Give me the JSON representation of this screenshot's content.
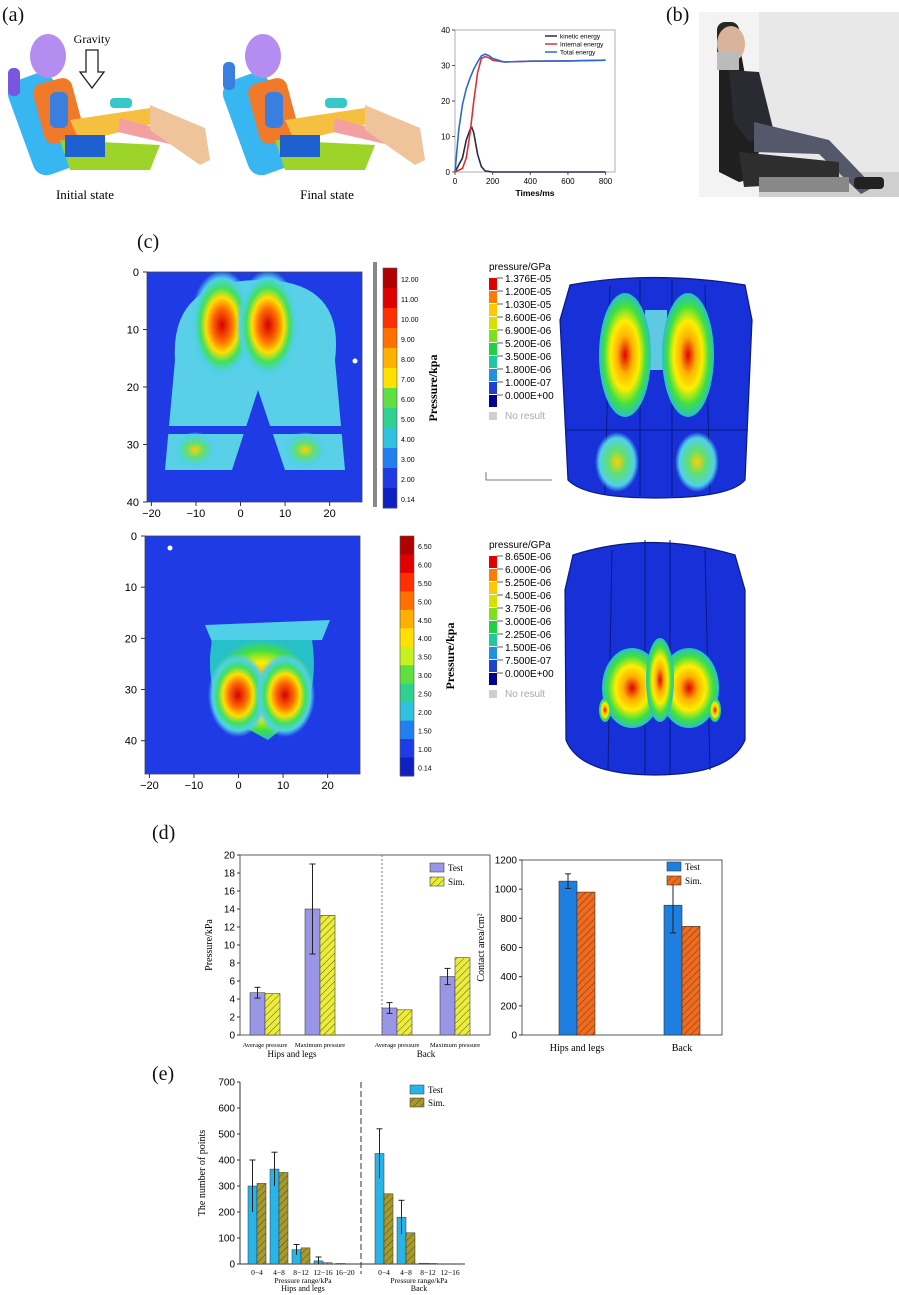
{
  "panels": {
    "a": "(a)",
    "b": "(b)",
    "c": "(c)",
    "d": "(d)",
    "e": "(e)"
  },
  "panel_a": {
    "gravity": "Gravity",
    "initial": "Initial state",
    "final": "Final state"
  },
  "energy_chart": {
    "type": "line",
    "xlabel": "Times/ms",
    "x_ticks": [
      "0",
      "200",
      "400",
      "600",
      "800"
    ],
    "y_ticks": [
      "0",
      "10",
      "20",
      "30",
      "40"
    ],
    "xlim": [
      0,
      850
    ],
    "ylim": [
      0,
      40
    ],
    "legend": [
      "kinetic energy",
      "Internal energy",
      "Total energy"
    ],
    "colors": {
      "kinetic": "#2b2b4a",
      "internal": "#e03030",
      "total": "#2a6bd1"
    },
    "series": [
      {
        "name": "kinetic energy",
        "x": [
          0,
          40,
          60,
          80,
          90,
          100,
          120,
          140,
          160,
          200,
          800
        ],
        "y": [
          0,
          4,
          9,
          12,
          12.5,
          11,
          5,
          1.5,
          0.3,
          0,
          0
        ]
      },
      {
        "name": "Internal energy",
        "x": [
          0,
          40,
          60,
          80,
          100,
          120,
          140,
          160,
          180,
          200,
          260,
          400,
          600,
          800
        ],
        "y": [
          0,
          1,
          4,
          11,
          20,
          28,
          32,
          32.5,
          32.2,
          31.5,
          31,
          31.2,
          31.3,
          31.5
        ]
      },
      {
        "name": "Total energy",
        "x": [
          0,
          20,
          40,
          60,
          80,
          100,
          120,
          140,
          160,
          180,
          200,
          260,
          400,
          600,
          800
        ],
        "y": [
          0,
          12,
          19,
          23.5,
          26.5,
          29,
          31,
          32.7,
          33.2,
          32.8,
          32,
          31,
          31.2,
          31.3,
          31.5
        ]
      }
    ]
  },
  "contour_top": {
    "x_ticks": [
      "−20",
      "−10",
      "0",
      "10",
      "20"
    ],
    "y_ticks": [
      "0",
      "10",
      "20",
      "30",
      "40"
    ],
    "cb_ticks": [
      "12.00",
      "11.00",
      "10.00",
      "9.00",
      "8.00",
      "7.00",
      "6.00",
      "5.00",
      "4.00",
      "3.00",
      "2.00",
      "0.14"
    ],
    "cb_label": "Pressure/kpa"
  },
  "contour_bottom": {
    "x_ticks": [
      "−20",
      "−10",
      "0",
      "10",
      "20"
    ],
    "y_ticks": [
      "0",
      "10",
      "20",
      "30",
      "40"
    ],
    "cb_ticks": [
      "6.50",
      "6.00",
      "5.50",
      "5.00",
      "4.50",
      "4.00",
      "3.50",
      "3.00",
      "2.50",
      "2.00",
      "1.50",
      "1.00",
      "0.14"
    ],
    "cb_label": "Pressure/kpa"
  },
  "sim_top": {
    "title": "pressure/GPa",
    "levels": [
      "1.376E-05",
      "1.200E-05",
      "1.030E-05",
      "8.600E-06",
      "6.900E-06",
      "5.200E-06",
      "3.500E-06",
      "1.800E-06",
      "1.000E-07",
      "0.000E+00"
    ],
    "no_result": "No result"
  },
  "sim_bottom": {
    "title": "pressure/GPa",
    "levels": [
      "8.650E-06",
      "6.000E-06",
      "5.250E-06",
      "4.500E-06",
      "3.750E-06",
      "3.000E-06",
      "2.250E-06",
      "1.500E-06",
      "7.500E-07",
      "0.000E+00"
    ],
    "no_result": "No result"
  },
  "chart_data": [
    {
      "type": "bar",
      "ylabel": "Pressure/kPa",
      "y_ticks": [
        "0",
        "2",
        "4",
        "6",
        "8",
        "10",
        "12",
        "14",
        "16",
        "18",
        "20"
      ],
      "ylim": [
        0,
        20
      ],
      "categories": [
        "Average pressure",
        "Maximum pressure",
        "Average pressure",
        "Maximum pressure"
      ],
      "groups": [
        "Hips and legs",
        "Back"
      ],
      "series": [
        {
          "name": "Test",
          "values": [
            4.7,
            14.0,
            3.0,
            6.5
          ],
          "errors": [
            0.6,
            5.0,
            0.6,
            0.9
          ]
        },
        {
          "name": "Sim.",
          "values": [
            4.6,
            13.3,
            2.8,
            8.6
          ]
        }
      ],
      "colors": {
        "test": "#9a96e6",
        "sim": "#ecec3a"
      }
    },
    {
      "type": "bar",
      "ylabel": "Contact area/cm²",
      "y_ticks": [
        "0",
        "200",
        "400",
        "600",
        "800",
        "1000",
        "1200"
      ],
      "ylim": [
        0,
        1200
      ],
      "categories": [
        "Hips and legs",
        "Back"
      ],
      "series": [
        {
          "name": "Test",
          "values": [
            1055,
            890
          ],
          "errors": [
            50,
            190
          ]
        },
        {
          "name": "Sim.",
          "values": [
            980,
            745
          ]
        }
      ],
      "colors": {
        "test": "#1e7fe0",
        "sim": "#f26a1b"
      }
    },
    {
      "type": "bar",
      "ylabel": "The number of points",
      "y_ticks": [
        "0",
        "100",
        "200",
        "300",
        "400",
        "500",
        "600",
        "700"
      ],
      "ylim": [
        0,
        700
      ],
      "groups": [
        {
          "name": "Hips and legs",
          "xlabel": "Pressure range/kPa",
          "categories": [
            "0−4",
            "4−8",
            "8−12",
            "12−16",
            "16−20"
          ],
          "test": [
            300,
            365,
            55,
            12,
            2
          ],
          "sim": [
            310,
            352,
            62,
            5,
            1
          ],
          "errors": [
            100,
            65,
            20,
            15,
            0
          ]
        },
        {
          "name": "Back",
          "xlabel": "Pressure range/kPa",
          "categories": [
            "0−4",
            "4−8",
            "8−12",
            "12−16"
          ],
          "test": [
            425,
            180,
            3,
            1
          ],
          "sim": [
            270,
            120,
            2,
            1
          ],
          "errors": [
            95,
            65,
            0,
            0
          ]
        }
      ],
      "series": [
        {
          "name": "Test"
        },
        {
          "name": "Sim."
        }
      ],
      "colors": {
        "test": "#28b4e6",
        "sim": "#a89a2a"
      }
    }
  ]
}
